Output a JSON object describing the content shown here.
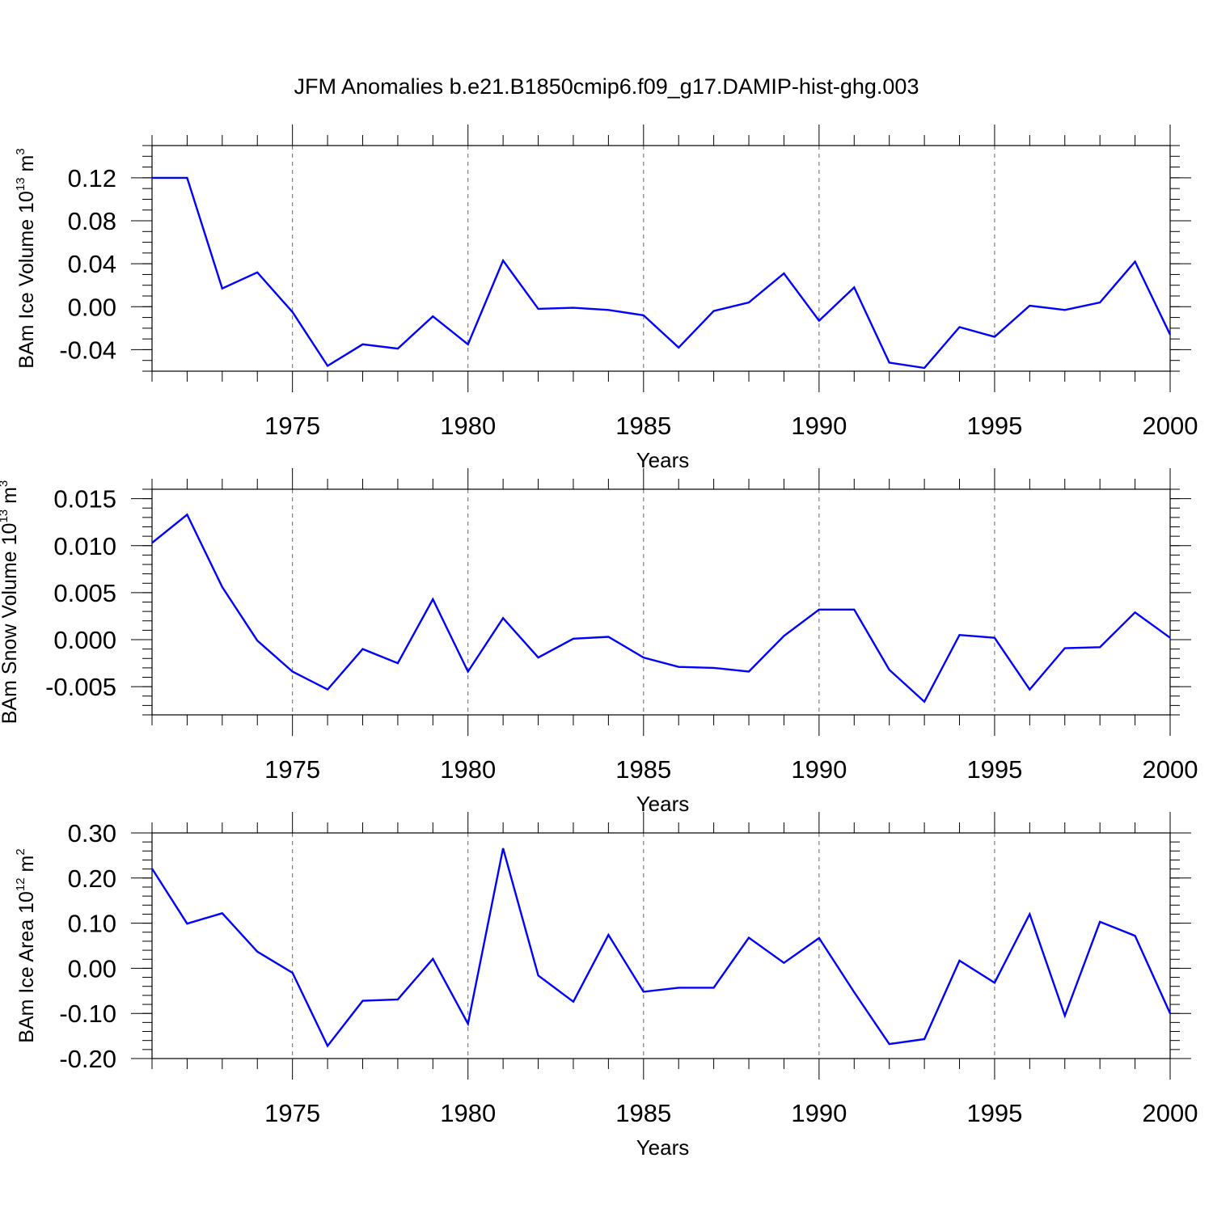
{
  "chart_data": {
    "title": "JFM Anomalies b.e21.B1850cmip6.f09_g17.DAMIP-hist-ghg.003",
    "panels": [
      {
        "type": "line",
        "ylabel": {
          "text": "BAm Ice Volume 10",
          "exp": "13",
          "unit": "m",
          "unit_exp": "3"
        },
        "xlabel": "Years",
        "x_ticks": [
          1975,
          1980,
          1985,
          1990,
          1995,
          2000
        ],
        "x_tick_labels": [
          "1975",
          "1980",
          "1985",
          "1990",
          "1995",
          "2000"
        ],
        "xlim": [
          1971,
          2000
        ],
        "ylim": [
          -0.06,
          0.15
        ],
        "y_ticks": [
          -0.04,
          0.0,
          0.04,
          0.08,
          0.12
        ],
        "y_tick_labels": [
          "-0.04",
          "0.00",
          "0.04",
          "0.08",
          "0.12"
        ],
        "y_minor_step": 0.01,
        "color": "#0000ff",
        "x": [
          1971,
          1972,
          1973,
          1974,
          1975,
          1976,
          1977,
          1978,
          1979,
          1980,
          1981,
          1982,
          1983,
          1984,
          1985,
          1986,
          1987,
          1988,
          1989,
          1990,
          1991,
          1992,
          1993,
          1994,
          1995,
          1996,
          1997,
          1998,
          1999,
          2000
        ],
        "values": [
          0.12,
          0.12,
          0.017,
          0.032,
          -0.005,
          -0.055,
          -0.035,
          -0.039,
          -0.009,
          -0.035,
          0.043,
          -0.002,
          -0.001,
          -0.003,
          -0.008,
          -0.038,
          -0.004,
          0.004,
          0.031,
          -0.013,
          0.018,
          -0.052,
          -0.057,
          -0.019,
          -0.028,
          0.001,
          -0.003,
          0.004,
          0.042,
          -0.026
        ]
      },
      {
        "type": "line",
        "ylabel": {
          "text": "BAm Snow Volume 10",
          "exp": "13",
          "unit": "m",
          "unit_exp": "3"
        },
        "xlabel": "Years",
        "x_ticks": [
          1975,
          1980,
          1985,
          1990,
          1995,
          2000
        ],
        "x_tick_labels": [
          "1975",
          "1980",
          "1985",
          "1990",
          "1995",
          "2000"
        ],
        "xlim": [
          1971,
          2000
        ],
        "ylim": [
          -0.008,
          0.016
        ],
        "y_ticks": [
          -0.005,
          0.0,
          0.005,
          0.01,
          0.015
        ],
        "y_tick_labels": [
          "-0.005",
          "0.000",
          "0.005",
          "0.010",
          "0.015"
        ],
        "y_minor_step": 0.001,
        "color": "#0000ff",
        "x": [
          1971,
          1972,
          1973,
          1974,
          1975,
          1976,
          1977,
          1978,
          1979,
          1980,
          1981,
          1982,
          1983,
          1984,
          1985,
          1986,
          1987,
          1988,
          1989,
          1990,
          1991,
          1992,
          1993,
          1994,
          1995,
          1996,
          1997,
          1998,
          1999,
          2000
        ],
        "values": [
          0.0103,
          0.0133,
          0.0056,
          -0.0001,
          -0.0034,
          -0.0053,
          -0.001,
          -0.0025,
          0.0043,
          -0.0034,
          0.0023,
          -0.0019,
          0.0001,
          0.0003,
          -0.0019,
          -0.0029,
          -0.003,
          -0.0034,
          0.0004,
          0.0032,
          0.0032,
          -0.0032,
          -0.0066,
          0.0005,
          0.0002,
          -0.0053,
          -0.0009,
          -0.0008,
          0.0029,
          0.0002
        ]
      },
      {
        "type": "line",
        "ylabel": {
          "text": "BAm Ice Area 10",
          "exp": "12",
          "unit": "m",
          "unit_exp": "2"
        },
        "xlabel": "Years",
        "x_ticks": [
          1975,
          1980,
          1985,
          1990,
          1995,
          2000
        ],
        "x_tick_labels": [
          "1975",
          "1980",
          "1985",
          "1990",
          "1995",
          "2000"
        ],
        "xlim": [
          1971,
          2000
        ],
        "ylim": [
          -0.2,
          0.3
        ],
        "y_ticks": [
          -0.2,
          -0.1,
          0.0,
          0.1,
          0.2,
          0.3
        ],
        "y_tick_labels": [
          "-0.20",
          "-0.10",
          "0.00",
          "0.10",
          "0.20",
          "0.30"
        ],
        "y_minor_step": 0.02,
        "color": "#0000ff",
        "x": [
          1971,
          1972,
          1973,
          1974,
          1975,
          1976,
          1977,
          1978,
          1979,
          1980,
          1981,
          1982,
          1983,
          1984,
          1985,
          1986,
          1987,
          1988,
          1989,
          1990,
          1991,
          1992,
          1993,
          1994,
          1995,
          1996,
          1997,
          1998,
          1999,
          2000
        ],
        "values": [
          0.221,
          0.099,
          0.122,
          0.037,
          -0.01,
          -0.172,
          -0.072,
          -0.069,
          0.021,
          -0.123,
          0.266,
          -0.016,
          -0.074,
          0.074,
          -0.052,
          -0.043,
          -0.043,
          0.068,
          0.012,
          0.067,
          -0.053,
          -0.168,
          -0.157,
          0.017,
          -0.032,
          0.12,
          -0.105,
          0.103,
          0.072,
          -0.1
        ]
      }
    ]
  }
}
